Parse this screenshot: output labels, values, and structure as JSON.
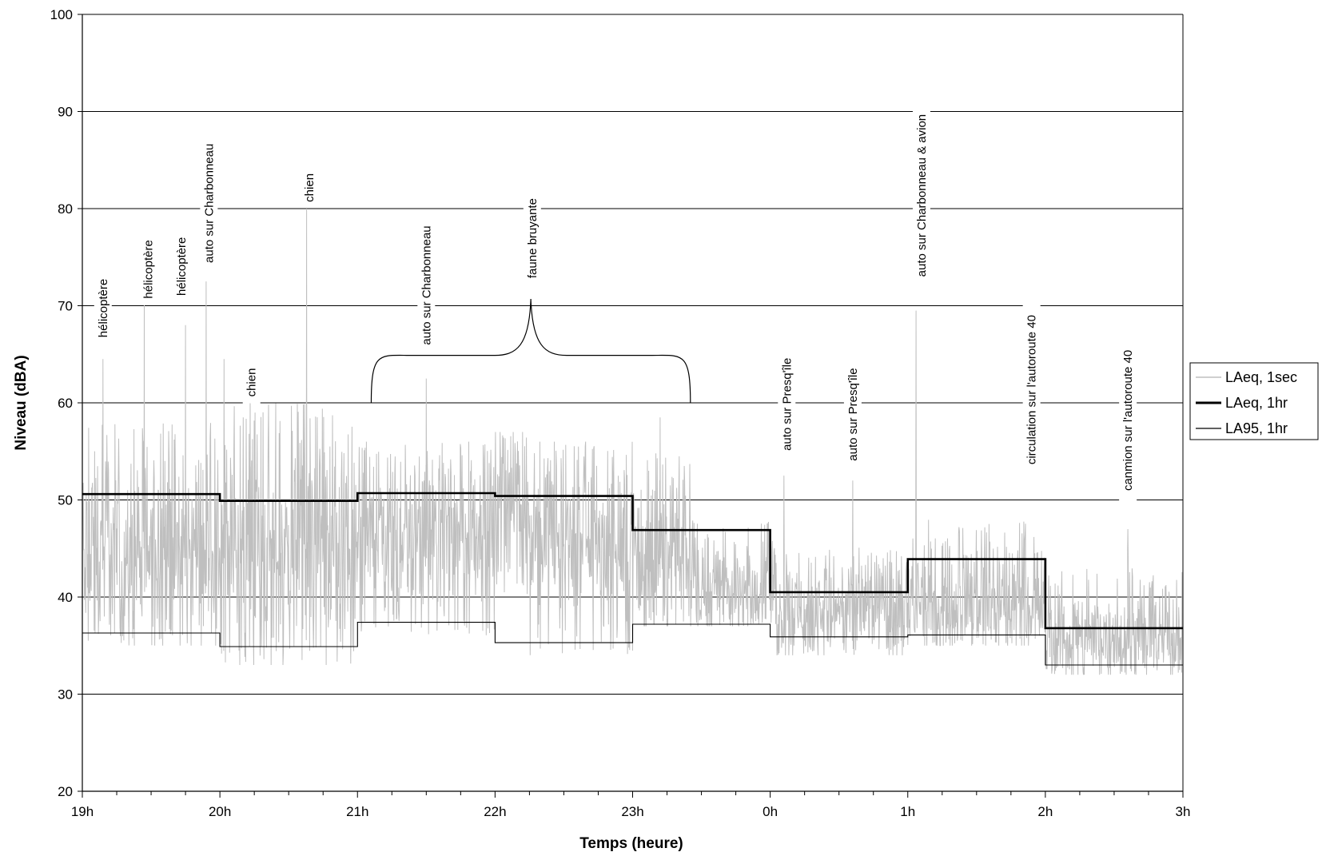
{
  "chart_data": {
    "type": "line",
    "xlabel": "Temps (heure)",
    "ylabel": "Niveau (dBA)",
    "ylim": [
      20,
      100
    ],
    "y_ticks": [
      20,
      30,
      40,
      50,
      60,
      70,
      80,
      90,
      100
    ],
    "xlim": [
      0,
      8
    ],
    "x_tick_labels": [
      "19h",
      "20h",
      "21h",
      "22h",
      "23h",
      "0h",
      "1h",
      "2h",
      "3h"
    ],
    "grid": "horizontal",
    "legend_position": "right",
    "series": [
      {
        "name": "LAeq, 1sec",
        "color": "#bfbfbf",
        "segments": [
          {
            "x_start": 0.0,
            "x_end": 1.0,
            "min": 35,
            "max": 58,
            "mean": 45
          },
          {
            "x_start": 1.0,
            "x_end": 2.0,
            "min": 33,
            "max": 60,
            "mean": 45
          },
          {
            "x_start": 2.0,
            "x_end": 3.0,
            "min": 36,
            "max": 56,
            "mean": 47
          },
          {
            "x_start": 3.0,
            "x_end": 3.25,
            "min": 40,
            "max": 57,
            "mean": 50
          },
          {
            "x_start": 3.25,
            "x_end": 4.0,
            "min": 34,
            "max": 56,
            "mean": 46
          },
          {
            "x_start": 4.0,
            "x_end": 4.42,
            "min": 37,
            "max": 55,
            "mean": 44
          },
          {
            "x_start": 4.42,
            "x_end": 5.0,
            "min": 37,
            "max": 48,
            "mean": 41
          },
          {
            "x_start": 5.0,
            "x_end": 6.0,
            "min": 34,
            "max": 46,
            "mean": 39
          },
          {
            "x_start": 6.0,
            "x_end": 7.0,
            "min": 35,
            "max": 48,
            "mean": 40
          },
          {
            "x_start": 7.0,
            "x_end": 8.0,
            "min": 32,
            "max": 43,
            "mean": 36
          }
        ],
        "peaks": [
          {
            "x": 0.15,
            "y": 64.5
          },
          {
            "x": 0.45,
            "y": 71
          },
          {
            "x": 0.75,
            "y": 68
          },
          {
            "x": 0.9,
            "y": 72.5
          },
          {
            "x": 1.03,
            "y": 64.5
          },
          {
            "x": 1.22,
            "y": 61.5
          },
          {
            "x": 1.63,
            "y": 80
          },
          {
            "x": 2.5,
            "y": 62.5
          },
          {
            "x": 4.2,
            "y": 58.5
          },
          {
            "x": 5.1,
            "y": 52.5
          },
          {
            "x": 5.6,
            "y": 52
          },
          {
            "x": 6.06,
            "y": 69.5
          },
          {
            "x": 7.6,
            "y": 47
          }
        ]
      },
      {
        "name": "LAeq, 1hr",
        "color": "#000000",
        "steps": [
          {
            "x_start": 0,
            "x_end": 1,
            "y": 50.6
          },
          {
            "x_start": 1,
            "x_end": 2,
            "y": 49.9
          },
          {
            "x_start": 2,
            "x_end": 3,
            "y": 50.7
          },
          {
            "x_start": 3,
            "x_end": 4,
            "y": 50.4
          },
          {
            "x_start": 4,
            "x_end": 5,
            "y": 46.9
          },
          {
            "x_start": 5,
            "x_end": 6,
            "y": 40.5
          },
          {
            "x_start": 6,
            "x_end": 7,
            "y": 43.9
          },
          {
            "x_start": 7,
            "x_end": 8,
            "y": 36.8
          }
        ]
      },
      {
        "name": "LA95, 1hr",
        "color": "#000000",
        "steps": [
          {
            "x_start": 0,
            "x_end": 1,
            "y": 36.3
          },
          {
            "x_start": 1,
            "x_end": 2,
            "y": 34.9
          },
          {
            "x_start": 2,
            "x_end": 3,
            "y": 37.4
          },
          {
            "x_start": 3,
            "x_end": 4,
            "y": 35.3
          },
          {
            "x_start": 4,
            "x_end": 5,
            "y": 37.2
          },
          {
            "x_start": 5,
            "x_end": 6,
            "y": 35.9
          },
          {
            "x_start": 6,
            "x_end": 7,
            "y": 36.1
          },
          {
            "x_start": 7,
            "x_end": 8,
            "y": 33.0
          }
        ]
      }
    ],
    "annotations": [
      {
        "text": "hélicoptère",
        "x": 0.15,
        "y_top": 73.3,
        "y_bottom": 66.2
      },
      {
        "text": "hélicoptère",
        "x": 0.48,
        "y_top": 77.2,
        "y_bottom": 70.3
      },
      {
        "text": "hélicoptère",
        "x": 0.72,
        "y_top": 77.5,
        "y_bottom": 70.6
      },
      {
        "text": "auto sur Charbonneau",
        "x": 0.92,
        "y_top": 87.5,
        "y_bottom": 73.6
      },
      {
        "text": "chien",
        "x": 1.23,
        "y_top": 64.0,
        "y_bottom": 60.2
      },
      {
        "text": "chien",
        "x": 1.65,
        "y_top": 84.0,
        "y_bottom": 80.3
      },
      {
        "text": "auto sur Charbonneau",
        "x": 2.5,
        "y_top": 79.0,
        "y_bottom": 65.2
      },
      {
        "text": "faune bruyante",
        "x": 3.27,
        "y_top": 81.7,
        "y_bottom": 72.2
      },
      {
        "text": "auto sur Presq'île",
        "x": 5.12,
        "y_top": 65.0,
        "y_bottom": 54.7
      },
      {
        "text": "auto sur Presq'île",
        "x": 5.6,
        "y_top": 64.0,
        "y_bottom": 53.6
      },
      {
        "text": "auto sur Charbonneau & avion",
        "x": 6.1,
        "y_top": 90.8,
        "y_bottom": 71.9
      },
      {
        "text": "circulation sur l'autoroute 40",
        "x": 6.9,
        "y_top": 71.0,
        "y_bottom": 51.7
      },
      {
        "text": "canmion sur l'autoroute 40",
        "x": 7.6,
        "y_top": 67.0,
        "y_bottom": 49.4
      }
    ],
    "brace": {
      "x_start": 2.1,
      "x_end": 4.42,
      "y": 60,
      "tip_y": 70.7
    }
  }
}
